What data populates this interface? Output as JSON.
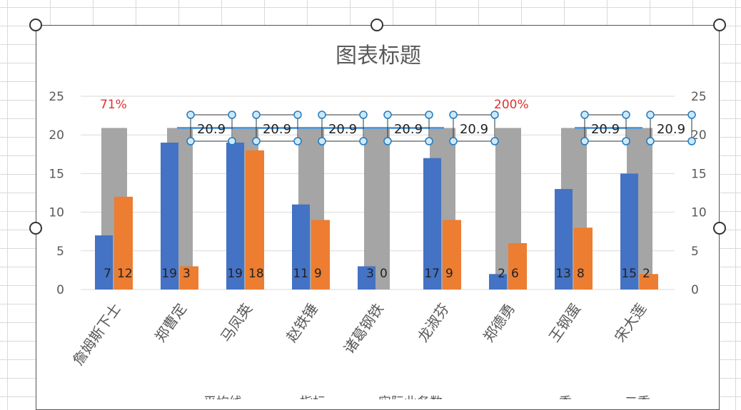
{
  "chart_data": {
    "type": "bar",
    "title": "图表标题",
    "categories": [
      "詹姆斯下士",
      "郑曹定",
      "马凤英",
      "赵铁锤",
      "诸葛钢铁",
      "龙淑芬",
      "郑德勇",
      "王钢蛋",
      "宋大莲"
    ],
    "ylim": [
      0,
      25
    ],
    "yticks": [
      0,
      5,
      10,
      15,
      20,
      25
    ],
    "y2ticks": [
      0,
      5,
      10,
      15,
      20,
      25
    ],
    "grid": true,
    "legend_position": "bottom",
    "series": [
      {
        "name": "指标",
        "kind": "bar-background",
        "color": "#a5a5a5",
        "values": [
          20.9,
          20.9,
          20.9,
          20.9,
          20.9,
          20.9,
          20.9,
          20.9,
          20.9
        ]
      },
      {
        "name": "一季",
        "kind": "bar",
        "color": "#4472c4",
        "values": [
          7,
          19,
          19,
          11,
          3,
          17,
          2,
          13,
          15
        ]
      },
      {
        "name": "二季",
        "kind": "bar",
        "color": "#ed7d31",
        "values": [
          12,
          3,
          18,
          9,
          0,
          9,
          6,
          8,
          2
        ]
      },
      {
        "name": "平均线",
        "kind": "line",
        "color": "#5b9bd5",
        "value": 20.9
      }
    ],
    "average_labels": [
      "20.9",
      "20.9",
      "20.9",
      "20.9",
      "20.9",
      "20.9",
      "20.9"
    ],
    "average_label_categories": [
      1,
      2,
      3,
      4,
      5,
      7,
      8
    ],
    "annotations": [
      {
        "text": "71%",
        "category": 0,
        "color": "#e03030"
      },
      {
        "text": "200%",
        "category": 6,
        "color": "#e03030"
      }
    ],
    "legend": [
      "平均线",
      "指标",
      "实际业务数",
      "一季",
      "二季"
    ]
  }
}
